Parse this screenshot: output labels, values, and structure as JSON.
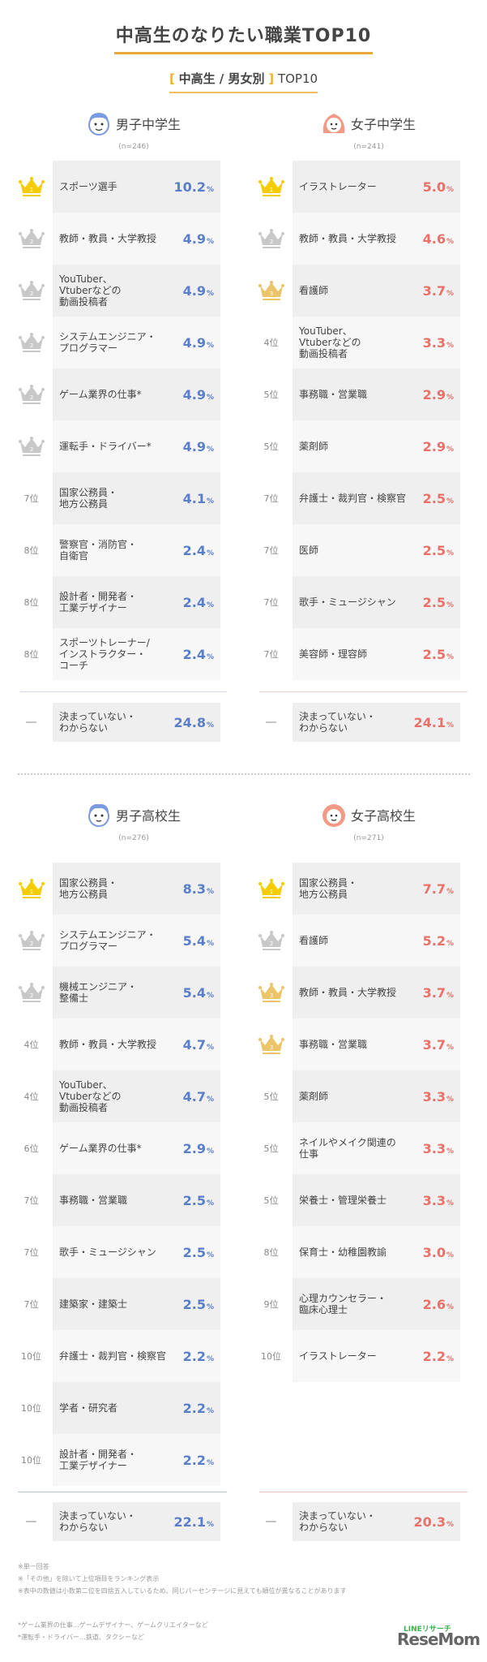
{
  "header": {
    "title": "中高生のなりたい職業TOP10",
    "subtitle_bracket_open": "[",
    "subtitle_main": "中高生 / 男女別",
    "subtitle_bracket_close": "]",
    "subtitle_suffix": "TOP10"
  },
  "colors": {
    "boys": "#5a7ec8",
    "girls": "#e8716a",
    "gold": "#f5cc00",
    "silver": "#c8c8c8",
    "bronze": "#ecc46a",
    "accent": "#e8a93a"
  },
  "groups": {
    "boys_middle": {
      "name": "男子中学生",
      "n": "(n=246)",
      "items": [
        {
          "rank": "1",
          "crown": "gold",
          "label": "スポーツ選手",
          "value": "10.2"
        },
        {
          "rank": "2",
          "crown": "silver",
          "label": "教師・教員・大学教授",
          "value": "4.9"
        },
        {
          "rank": "2",
          "crown": "silver",
          "label": "YouTuber、\nVtuberなどの\n動画投稿者",
          "value": "4.9"
        },
        {
          "rank": "2",
          "crown": "silver",
          "label": "システムエンジニア・\nプログラマー",
          "value": "4.9"
        },
        {
          "rank": "2",
          "crown": "silver",
          "label": "ゲーム業界の仕事*",
          "value": "4.9"
        },
        {
          "rank": "2",
          "crown": "silver",
          "label": "運転手・ドライバー*",
          "value": "4.9"
        },
        {
          "rank": "7位",
          "crown": "",
          "label": "国家公務員・\n地方公務員",
          "value": "4.1"
        },
        {
          "rank": "8位",
          "crown": "",
          "label": "警察官・消防官・\n自衛官",
          "value": "2.4"
        },
        {
          "rank": "8位",
          "crown": "",
          "label": "設計者・開発者・\n工業デザイナー",
          "value": "2.4"
        },
        {
          "rank": "8位",
          "crown": "",
          "label": "スポーツトレーナー/\nインストラクター・\nコーチ",
          "value": "2.4"
        }
      ],
      "other": {
        "rank": "—",
        "label": "決まっていない・\nわからない",
        "value": "24.8"
      }
    },
    "girls_middle": {
      "name": "女子中学生",
      "n": "(n=241)",
      "items": [
        {
          "rank": "1",
          "crown": "gold",
          "label": "イラストレーター",
          "value": "5.0"
        },
        {
          "rank": "2",
          "crown": "silver",
          "label": "教師・教員・大学教授",
          "value": "4.6"
        },
        {
          "rank": "3",
          "crown": "bronze",
          "label": "看護師",
          "value": "3.7"
        },
        {
          "rank": "4位",
          "crown": "",
          "label": "YouTuber、\nVtuberなどの\n動画投稿者",
          "value": "3.3"
        },
        {
          "rank": "5位",
          "crown": "",
          "label": "事務職・営業職",
          "value": "2.9"
        },
        {
          "rank": "5位",
          "crown": "",
          "label": "薬剤師",
          "value": "2.9"
        },
        {
          "rank": "7位",
          "crown": "",
          "label": "弁護士・裁判官・検察官",
          "value": "2.5"
        },
        {
          "rank": "7位",
          "crown": "",
          "label": "医師",
          "value": "2.5"
        },
        {
          "rank": "7位",
          "crown": "",
          "label": "歌手・ミュージシャン",
          "value": "2.5"
        },
        {
          "rank": "7位",
          "crown": "",
          "label": "美容師・理容師",
          "value": "2.5"
        }
      ],
      "other": {
        "rank": "—",
        "label": "決まっていない・\nわからない",
        "value": "24.1"
      }
    },
    "boys_high": {
      "name": "男子高校生",
      "n": "(n=276)",
      "items": [
        {
          "rank": "1",
          "crown": "gold",
          "label": "国家公務員・\n地方公務員",
          "value": "8.3"
        },
        {
          "rank": "2",
          "crown": "silver",
          "label": "システムエンジニア・\nプログラマー",
          "value": "5.4"
        },
        {
          "rank": "2",
          "crown": "silver",
          "label": "機械エンジニア・\n整備士",
          "value": "5.4"
        },
        {
          "rank": "4位",
          "crown": "",
          "label": "教師・教員・大学教授",
          "value": "4.7"
        },
        {
          "rank": "4位",
          "crown": "",
          "label": "YouTuber、\nVtuberなどの\n動画投稿者",
          "value": "4.7"
        },
        {
          "rank": "6位",
          "crown": "",
          "label": "ゲーム業界の仕事*",
          "value": "2.9"
        },
        {
          "rank": "7位",
          "crown": "",
          "label": "事務職・営業職",
          "value": "2.5"
        },
        {
          "rank": "7位",
          "crown": "",
          "label": "歌手・ミュージシャン",
          "value": "2.5"
        },
        {
          "rank": "7位",
          "crown": "",
          "label": "建築家・建築士",
          "value": "2.5"
        },
        {
          "rank": "10位",
          "crown": "",
          "label": "弁護士・裁判官・検察官",
          "value": "2.2"
        },
        {
          "rank": "10位",
          "crown": "",
          "label": "学者・研究者",
          "value": "2.2"
        },
        {
          "rank": "10位",
          "crown": "",
          "label": "設計者・開発者・\n工業デザイナー",
          "value": "2.2"
        }
      ],
      "other": {
        "rank": "—",
        "label": "決まっていない・\nわからない",
        "value": "22.1"
      }
    },
    "girls_high": {
      "name": "女子高校生",
      "n": "(n=271)",
      "items": [
        {
          "rank": "1",
          "crown": "gold",
          "label": "国家公務員・\n地方公務員",
          "value": "7.7"
        },
        {
          "rank": "2",
          "crown": "silver",
          "label": "看護師",
          "value": "5.2"
        },
        {
          "rank": "3",
          "crown": "bronze",
          "label": "教師・教員・大学教授",
          "value": "3.7"
        },
        {
          "rank": "3",
          "crown": "bronze",
          "label": "事務職・営業職",
          "value": "3.7"
        },
        {
          "rank": "5位",
          "crown": "",
          "label": "薬剤師",
          "value": "3.3"
        },
        {
          "rank": "5位",
          "crown": "",
          "label": "ネイルやメイク関連の\n仕事",
          "value": "3.3"
        },
        {
          "rank": "5位",
          "crown": "",
          "label": "栄養士・管理栄養士",
          "value": "3.3"
        },
        {
          "rank": "8位",
          "crown": "",
          "label": "保育士・幼稚園教諭",
          "value": "3.0"
        },
        {
          "rank": "9位",
          "crown": "",
          "label": "心理カウンセラー・\n臨床心理士",
          "value": "2.6"
        },
        {
          "rank": "10位",
          "crown": "",
          "label": "イラストレーター",
          "value": "2.2"
        }
      ],
      "other": {
        "rank": "—",
        "label": "決まっていない・\nわからない",
        "value": "20.3"
      }
    }
  },
  "pct_symbol": "%",
  "notes": [
    "※単一回答",
    "※「その他」を除いて上位項目をランキング表示",
    "※表中の数値は小数第二位を四捨五入しているため、同じパーセンテージに見えても順位が異なることがあります"
  ],
  "footnotes": [
    "*ゲーム業界の仕事…ゲームデザイナー、ゲームクリエイターなど",
    "*運転手・ドライバー…鉄道、タクシーなど"
  ],
  "logo": {
    "top": "LINEリサーチ",
    "main": "ReseMom"
  },
  "chart_data": [
    {
      "type": "table",
      "title": "男子中学生 (n=246)",
      "categories": [
        "スポーツ選手",
        "教師・教員・大学教授",
        "YouTuber、Vtuberなどの動画投稿者",
        "システムエンジニア・プログラマー",
        "ゲーム業界の仕事",
        "運転手・ドライバー",
        "国家公務員・地方公務員",
        "警察官・消防官・自衛官",
        "設計者・開発者・工業デザイナー",
        "スポーツトレーナー/インストラクター・コーチ",
        "決まっていない・わからない"
      ],
      "values": [
        10.2,
        4.9,
        4.9,
        4.9,
        4.9,
        4.9,
        4.1,
        2.4,
        2.4,
        2.4,
        24.8
      ],
      "unit": "%"
    },
    {
      "type": "table",
      "title": "女子中学生 (n=241)",
      "categories": [
        "イラストレーター",
        "教師・教員・大学教授",
        "看護師",
        "YouTuber、Vtuberなどの動画投稿者",
        "事務職・営業職",
        "薬剤師",
        "弁護士・裁判官・検察官",
        "医師",
        "歌手・ミュージシャン",
        "美容師・理容師",
        "決まっていない・わからない"
      ],
      "values": [
        5.0,
        4.6,
        3.7,
        3.3,
        2.9,
        2.9,
        2.5,
        2.5,
        2.5,
        2.5,
        24.1
      ],
      "unit": "%"
    },
    {
      "type": "table",
      "title": "男子高校生 (n=276)",
      "categories": [
        "国家公務員・地方公務員",
        "システムエンジニア・プログラマー",
        "機械エンジニア・整備士",
        "教師・教員・大学教授",
        "YouTuber、Vtuberなどの動画投稿者",
        "ゲーム業界の仕事",
        "事務職・営業職",
        "歌手・ミュージシャン",
        "建築家・建築士",
        "弁護士・裁判官・検察官",
        "学者・研究者",
        "設計者・開発者・工業デザイナー",
        "決まっていない・わからない"
      ],
      "values": [
        8.3,
        5.4,
        5.4,
        4.7,
        4.7,
        2.9,
        2.5,
        2.5,
        2.5,
        2.2,
        2.2,
        2.2,
        22.1
      ],
      "unit": "%"
    },
    {
      "type": "table",
      "title": "女子高校生 (n=271)",
      "categories": [
        "国家公務員・地方公務員",
        "看護師",
        "教師・教員・大学教授",
        "事務職・営業職",
        "薬剤師",
        "ネイルやメイク関連の仕事",
        "栄養士・管理栄養士",
        "保育士・幼稚園教諭",
        "心理カウンセラー・臨床心理士",
        "イラストレーター",
        "決まっていない・わからない"
      ],
      "values": [
        7.7,
        5.2,
        3.7,
        3.7,
        3.3,
        3.3,
        3.3,
        3.0,
        2.6,
        2.2,
        20.3
      ],
      "unit": "%"
    }
  ]
}
